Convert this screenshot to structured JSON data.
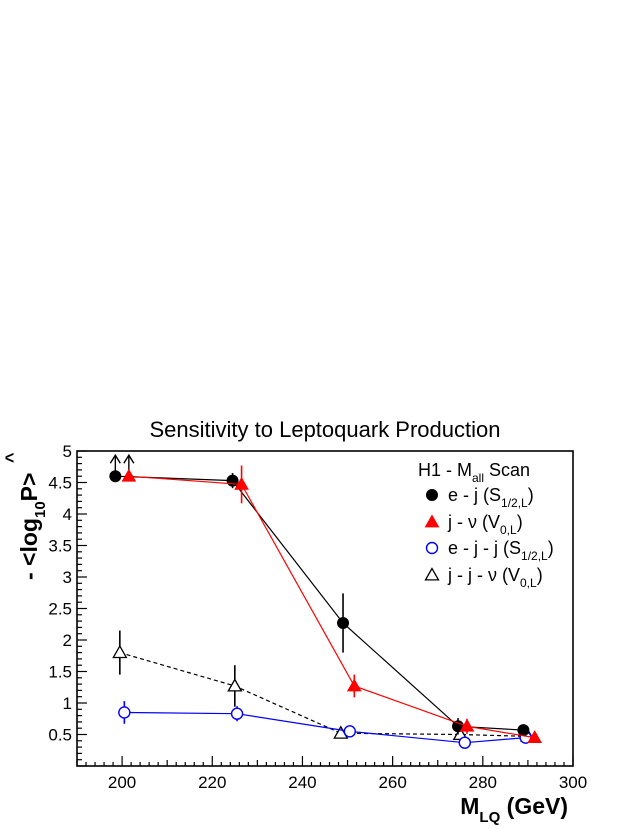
{
  "chart_data": {
    "type": "line",
    "title": "Sensitivity to Leptoquark Production",
    "xlabel": {
      "main": "M",
      "sub": "LQ",
      "rest": " (GeV)"
    },
    "ylabel": {
      "prefix": "- <log",
      "sub": "10",
      "hat": "P",
      "suffix": ">"
    },
    "xlim": [
      190,
      300
    ],
    "ylim": [
      0,
      5
    ],
    "x_ticks": [
      200,
      220,
      240,
      260,
      280,
      300
    ],
    "y_ticks": [
      0.5,
      1,
      1.5,
      2,
      2.5,
      3,
      3.5,
      4,
      4.5,
      5
    ],
    "y_tick_labels": [
      "0.5",
      "1",
      "1.5",
      "2",
      "2.5",
      "3",
      "3.5",
      "4",
      "4.5",
      "5"
    ],
    "legend_position": "top-right",
    "legend_title": {
      "main": "H1 - M",
      "sub": "all",
      "rest": " Scan"
    },
    "series": [
      {
        "name": {
          "main": "e - j  (S",
          "sub": "1/2,L",
          "rest": ")"
        },
        "marker": "filled-circle",
        "color": "#000000",
        "line": "solid",
        "x": [
          198.5,
          224.5,
          249,
          274.5,
          289
        ],
        "y": [
          4.6,
          4.53,
          2.27,
          0.63,
          0.57
        ],
        "err": [
          0,
          0.12,
          0.47,
          0.13,
          0.09
        ],
        "lower_limit": [
          true,
          false,
          false,
          false,
          false
        ]
      },
      {
        "name": {
          "main": "j - ν  (V",
          "sub": "0,L",
          "rest": ")"
        },
        "marker": "filled-triangle",
        "color": "#ff0000",
        "line": "solid",
        "x": [
          201.5,
          226.5,
          251.5,
          276.5,
          291.5
        ],
        "y": [
          4.6,
          4.47,
          1.27,
          0.63,
          0.45
        ],
        "err": [
          0,
          0.3,
          0.18,
          0.12,
          0.05
        ],
        "lower_limit": [
          true,
          false,
          false,
          false,
          false
        ]
      },
      {
        "name": {
          "main": "e - j - j  (S",
          "sub": "1/2,L",
          "rest": ")"
        },
        "marker": "open-circle",
        "color": "#0000ff",
        "line": "solid",
        "x": [
          200.5,
          225.5,
          250.5,
          276,
          289.5
        ],
        "y": [
          0.85,
          0.83,
          0.55,
          0.37,
          0.45
        ],
        "err": [
          0.18,
          0.12,
          0.08,
          0.05,
          0.05
        ],
        "lower_limit": [
          false,
          false,
          false,
          false,
          false
        ]
      },
      {
        "name": {
          "main": "j - j - ν  (V",
          "sub": "0,L",
          "rest": ")"
        },
        "marker": "open-triangle",
        "color": "#000000",
        "line": "dashed",
        "x": [
          199.5,
          225,
          248.5,
          275,
          290
        ],
        "y": [
          1.8,
          1.27,
          0.52,
          0.5,
          0.47
        ],
        "err": [
          0.35,
          0.33,
          0.05,
          0.05,
          0.05
        ],
        "lower_limit": [
          false,
          false,
          false,
          false,
          false
        ]
      }
    ]
  }
}
